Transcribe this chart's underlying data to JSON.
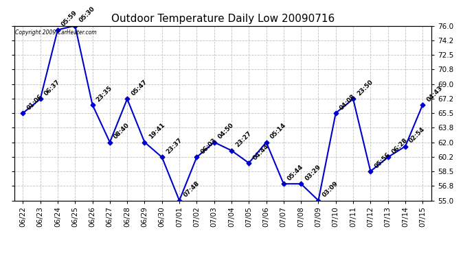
{
  "title": "Outdoor Temperature Daily Low 20090716",
  "copyright_text": "Copyright 2009 CarHeater.com",
  "x_labels": [
    "06/22",
    "06/23",
    "06/24",
    "06/25",
    "06/26",
    "06/27",
    "06/28",
    "06/29",
    "06/30",
    "07/01",
    "07/02",
    "07/03",
    "07/04",
    "07/05",
    "07/06",
    "07/07",
    "07/08",
    "07/09",
    "07/10",
    "07/11",
    "07/12",
    "07/13",
    "07/14",
    "07/15"
  ],
  "y_values": [
    65.5,
    67.2,
    75.5,
    76.0,
    66.5,
    62.0,
    67.2,
    62.0,
    60.2,
    55.0,
    60.2,
    62.0,
    61.0,
    59.5,
    62.0,
    57.0,
    57.0,
    55.0,
    65.5,
    67.2,
    58.5,
    60.2,
    61.5,
    66.5
  ],
  "annotations": [
    "01:06",
    "06:37",
    "05:59",
    "05:30",
    "23:35",
    "08:40",
    "05:47",
    "19:41",
    "23:37",
    "07:48",
    "06:03",
    "04:50",
    "23:27",
    "04:44",
    "05:14",
    "05:44",
    "03:29",
    "03:09",
    "04:08",
    "23:50",
    "05:56",
    "06:28",
    "02:54",
    "04:43"
  ],
  "line_color": "#0000cc",
  "marker_color": "#0000cc",
  "bg_color": "#ffffff",
  "grid_color": "#c0c0c0",
  "ylim": [
    55.0,
    76.0
  ],
  "yticks": [
    55.0,
    56.8,
    58.5,
    60.2,
    62.0,
    63.8,
    65.5,
    67.2,
    69.0,
    70.8,
    72.5,
    74.2,
    76.0
  ],
  "title_fontsize": 11,
  "annotation_fontsize": 6.5,
  "label_fontsize": 7.5
}
